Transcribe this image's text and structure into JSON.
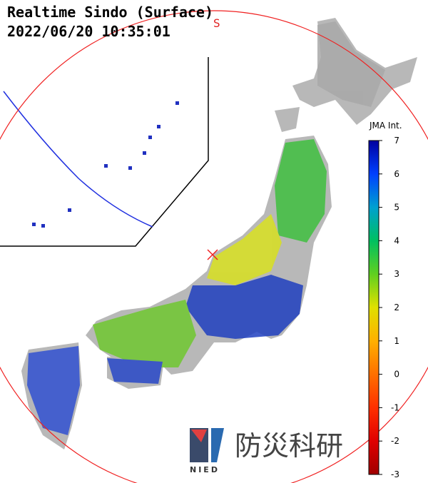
{
  "header": {
    "title": "Realtime Sindo (Surface)",
    "timestamp": "2022/06/20 10:35:01"
  },
  "wave_label": "S",
  "colorbar": {
    "label": "JMA Int.",
    "range": [
      -3,
      7
    ],
    "ticks": [
      7,
      6,
      5,
      4,
      3,
      2,
      1,
      0,
      -1,
      -2,
      -3
    ],
    "colors": [
      "#0000a0",
      "#0040ff",
      "#00a0d0",
      "#00c060",
      "#60d020",
      "#e0e000",
      "#ffb000",
      "#ff7000",
      "#ff3000",
      "#e00000",
      "#a00000"
    ]
  },
  "logo": {
    "name": "防災科研",
    "abbr": "NIED"
  }
}
